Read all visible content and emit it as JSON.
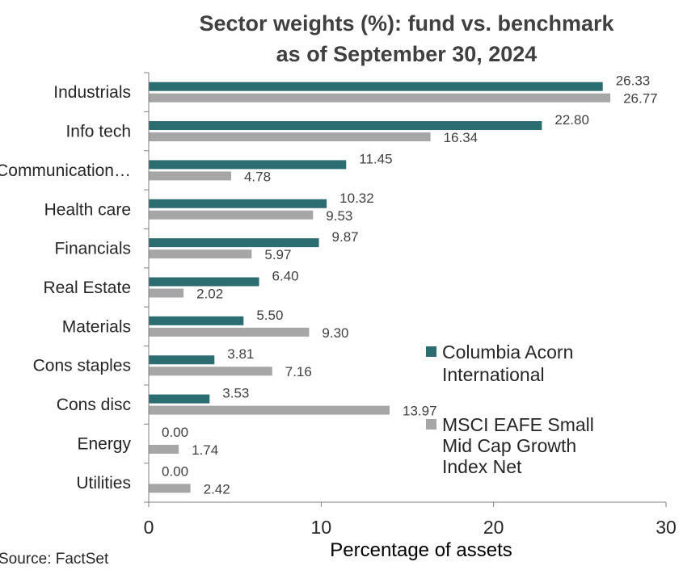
{
  "chart_data": {
    "type": "bar",
    "orientation": "horizontal",
    "title_lines": [
      "Sector weights (%): fund vs. benchmark",
      "as of  September 30, 2024"
    ],
    "categories": [
      "Industrials",
      "Info tech",
      "Communication…",
      "Health care",
      "Financials",
      "Real Estate",
      "Materials",
      "Cons staples",
      "Cons disc",
      "Energy",
      "Utilities"
    ],
    "series": [
      {
        "name": "Columbia Acorn International",
        "legend_lines": [
          "Columbia Acorn",
          "International"
        ],
        "color": "#2b6d70",
        "values": [
          26.33,
          22.8,
          11.45,
          10.32,
          9.87,
          6.4,
          5.5,
          3.81,
          3.53,
          0.0,
          0.0
        ],
        "labels": [
          "26.33",
          "22.80",
          "11.45",
          "10.32",
          "9.87",
          "6.40",
          "5.50",
          "3.81",
          "3.53",
          "0.00",
          "0.00"
        ]
      },
      {
        "name": "MSCI EAFE Small Mid Cap Growth Index Net",
        "legend_lines": [
          "MSCI EAFE Small",
          "Mid Cap Growth",
          "Index Net"
        ],
        "color": "#a6a6a6",
        "values": [
          26.77,
          16.34,
          4.78,
          9.53,
          5.97,
          2.02,
          9.3,
          7.16,
          13.97,
          1.74,
          2.42
        ],
        "labels": [
          "26.77",
          "16.34",
          "4.78",
          "9.53",
          "5.97",
          "2.02",
          "9.30",
          "7.16",
          "13.97",
          "1.74",
          "2.42"
        ]
      }
    ],
    "xlim": [
      0,
      30
    ],
    "xticks": [
      0,
      10,
      20,
      30
    ],
    "xtick_labels": [
      "0",
      "10",
      "20",
      "30"
    ],
    "xlabel": "Percentage of assets",
    "ylabel": "",
    "grid": false,
    "legend_position": "right"
  },
  "source": "Source: FactSet"
}
